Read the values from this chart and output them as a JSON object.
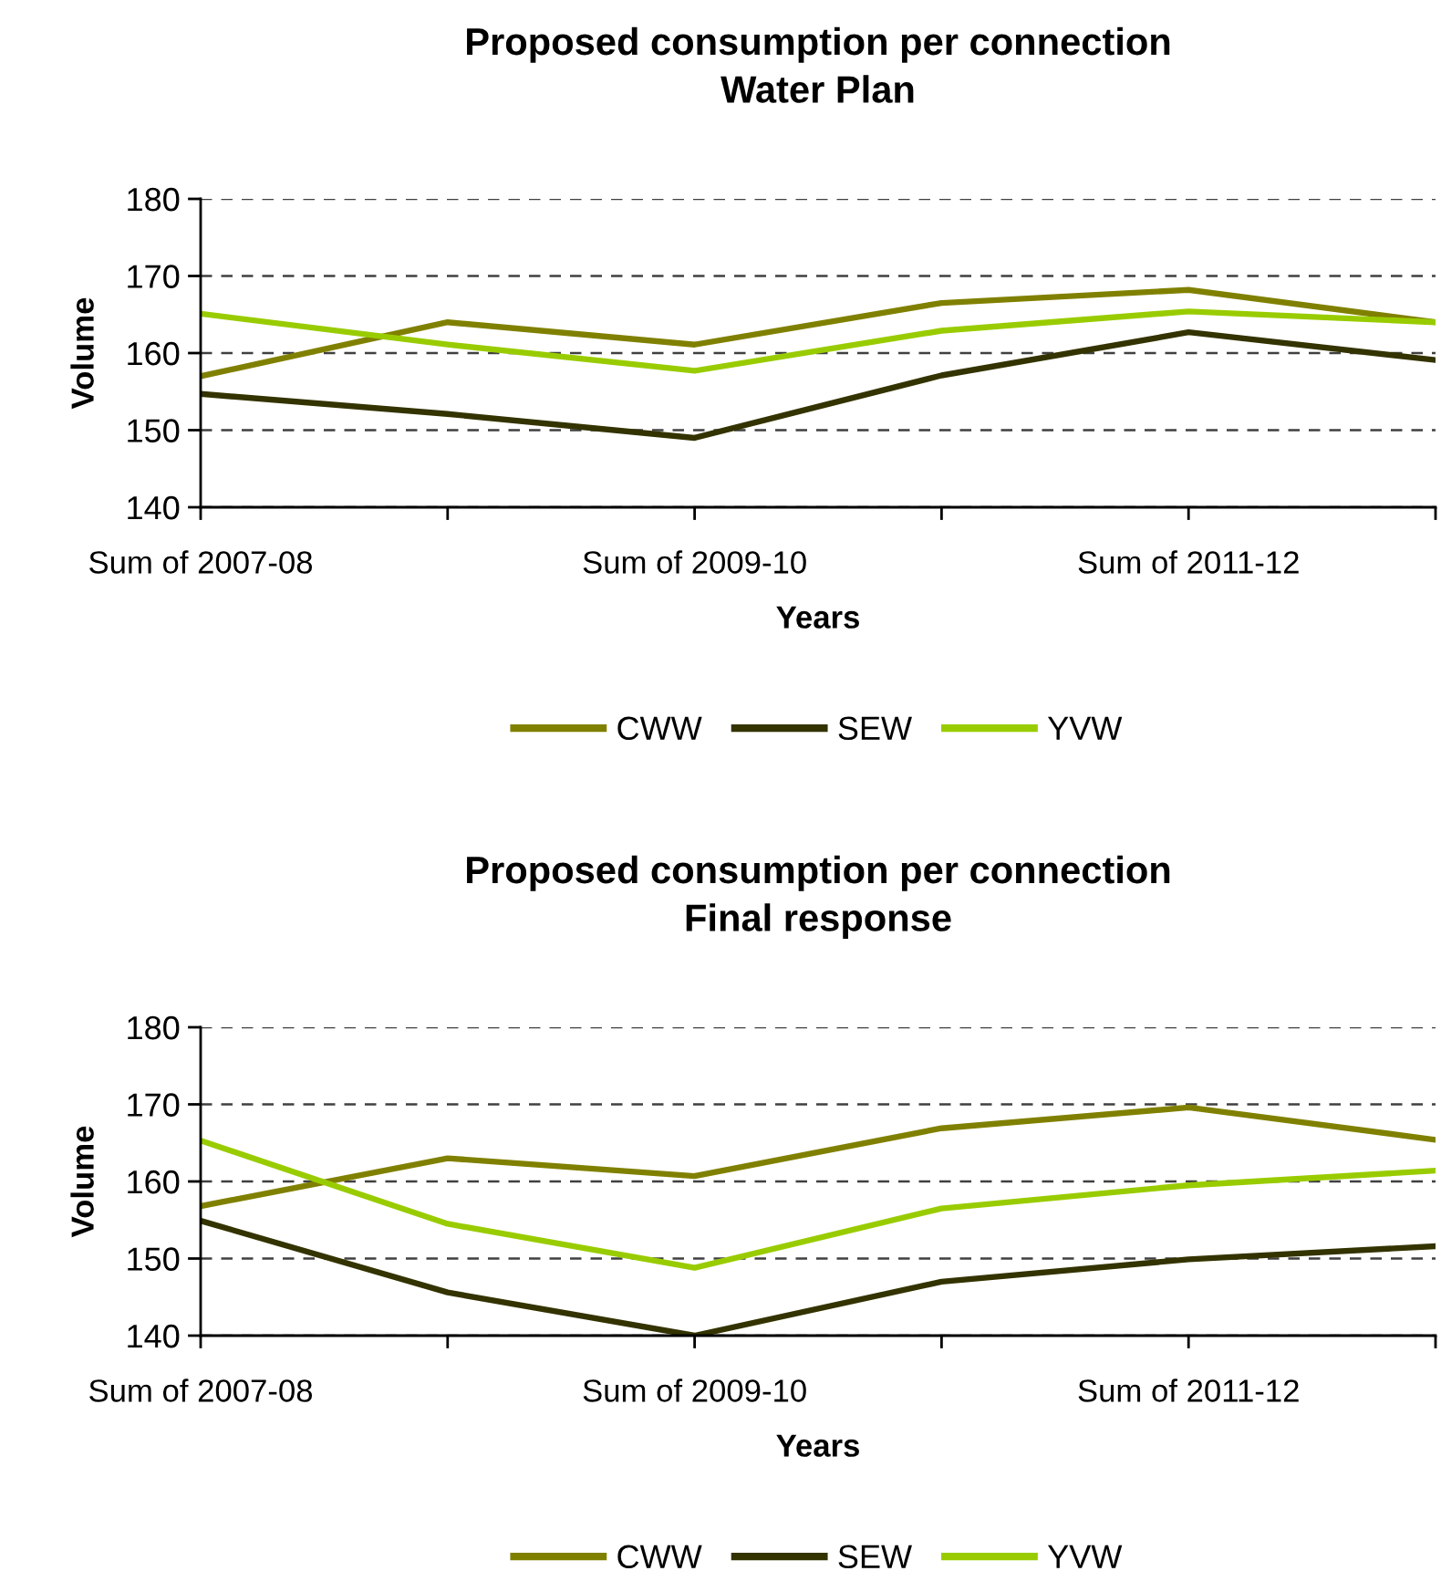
{
  "chart_data": [
    {
      "type": "line",
      "title": "Proposed consumption per connection\nWater Plan",
      "xlabel": "Years",
      "ylabel": "Volume",
      "categories": [
        "Sum of 2007-08",
        null,
        "Sum of 2009-10",
        null,
        "Sum of 2011-12",
        null
      ],
      "series": [
        {
          "name": "CWW",
          "color": "#808000",
          "values": [
            157.0,
            164.0,
            161.1,
            166.5,
            168.2,
            164.0
          ]
        },
        {
          "name": "SEW",
          "color": "#333300",
          "values": [
            154.7,
            152.1,
            149.0,
            157.1,
            162.7,
            159.1
          ]
        },
        {
          "name": "YVW",
          "color": "#99cc00",
          "values": [
            165.1,
            161.1,
            157.7,
            162.9,
            165.4,
            164.0
          ]
        }
      ],
      "ylim": [
        140,
        180
      ],
      "yticks": [
        140,
        150,
        160,
        170,
        180
      ],
      "grid": "y",
      "legend": "bottom",
      "marker": "none",
      "line_style": "solid"
    },
    {
      "type": "line",
      "title": "Proposed consumption per connection\nFinal response",
      "xlabel": "Years",
      "ylabel": "Volume",
      "categories": [
        "Sum of 2007-08",
        null,
        "Sum of 2009-10",
        null,
        "Sum of 2011-12",
        null
      ],
      "series": [
        {
          "name": "CWW",
          "color": "#808000",
          "values": [
            156.8,
            163.0,
            160.7,
            166.9,
            169.6,
            165.4
          ]
        },
        {
          "name": "SEW",
          "color": "#333300",
          "values": [
            154.9,
            145.6,
            140.0,
            147.0,
            149.9,
            151.6
          ]
        },
        {
          "name": "YVW",
          "color": "#99cc00",
          "values": [
            165.3,
            154.5,
            148.8,
            156.5,
            159.5,
            161.4
          ]
        }
      ],
      "ylim": [
        140,
        180
      ],
      "yticks": [
        140,
        150,
        160,
        170,
        180
      ],
      "grid": "y",
      "legend": "bottom",
      "marker": "none",
      "line_style": "solid"
    }
  ]
}
